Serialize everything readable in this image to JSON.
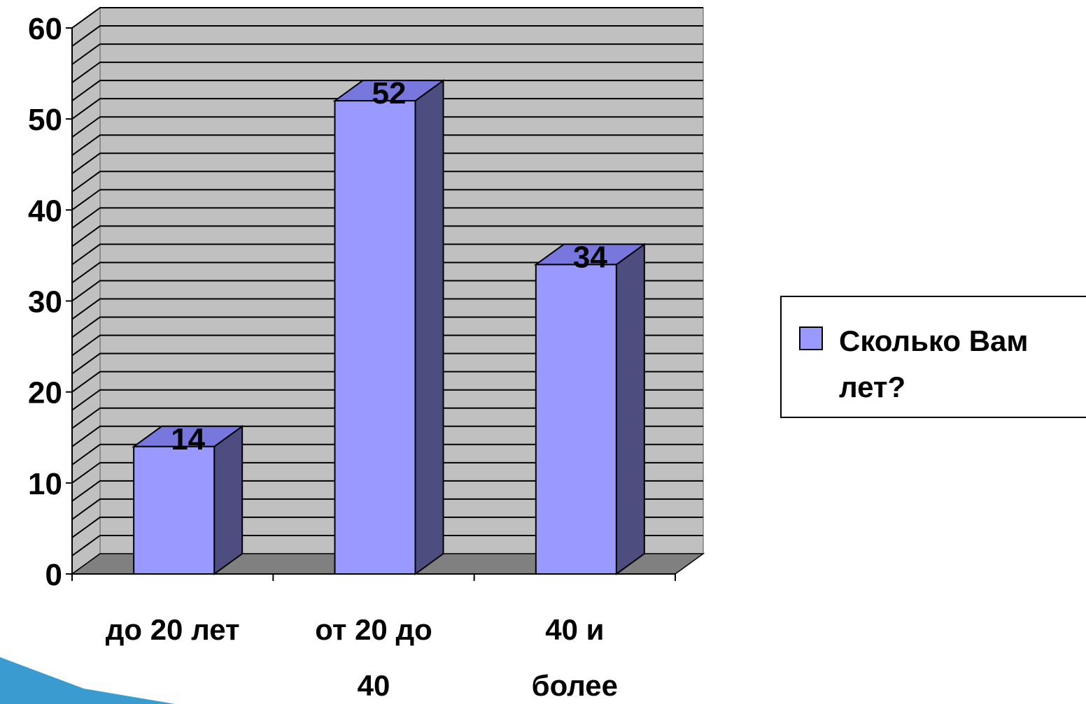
{
  "chart_data": {
    "type": "bar",
    "categories": [
      "до 20 лет",
      "от 20 до 40",
      "40 и более"
    ],
    "category_lines": [
      [
        "до 20 лет"
      ],
      [
        "от 20 до",
        "40"
      ],
      [
        "40 и",
        "более"
      ]
    ],
    "series": [
      {
        "name": "Сколько Вам лет?",
        "values": [
          14,
          52,
          34
        ]
      }
    ],
    "ylim": [
      0,
      60
    ],
    "yticks": [
      0,
      10,
      20,
      30,
      40,
      50,
      60
    ],
    "grid": true,
    "legend": "right",
    "style": "3d"
  },
  "legend": {
    "label": "Сколько Вам лет?"
  },
  "colors": {
    "bar_front": "#9999ff",
    "bar_top": "#7777dd",
    "bar_side": "#4d4d80",
    "wall": "#c0c0c0",
    "floor": "#808080",
    "decor": "#3a9bd0"
  }
}
